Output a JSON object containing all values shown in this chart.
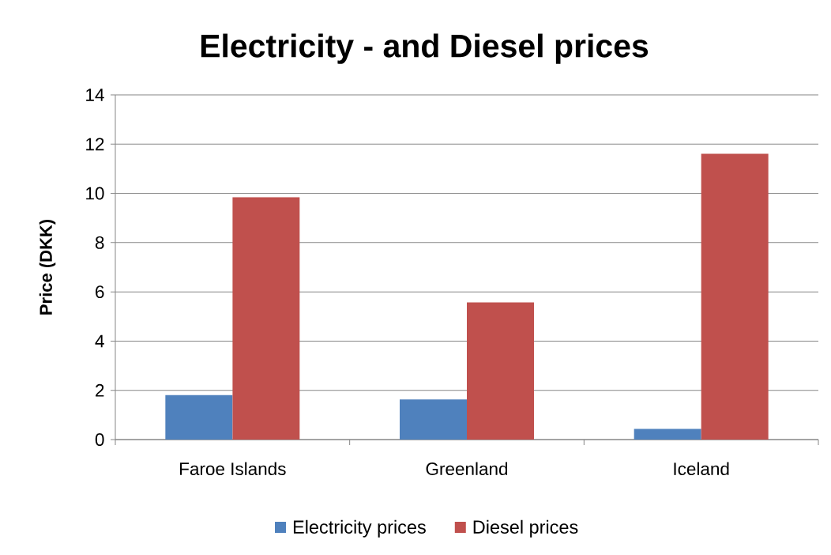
{
  "chart_data": {
    "type": "bar",
    "title": "Electricity - and Diesel prices",
    "ylabel": "Price (DKK)",
    "categories": [
      "Faroe Islands",
      "Greenland",
      "Iceland"
    ],
    "series": [
      {
        "name": "Electricity prices",
        "color": "#4f81bd",
        "values": [
          1.81,
          1.63,
          0.43
        ]
      },
      {
        "name": "Diesel prices",
        "color": "#c0504d",
        "values": [
          9.84,
          5.57,
          11.61
        ]
      }
    ],
    "ylim": [
      0,
      14
    ],
    "yticks": [
      0,
      2,
      4,
      6,
      8,
      10,
      12,
      14
    ],
    "grid": "y",
    "legend": "bottom"
  }
}
